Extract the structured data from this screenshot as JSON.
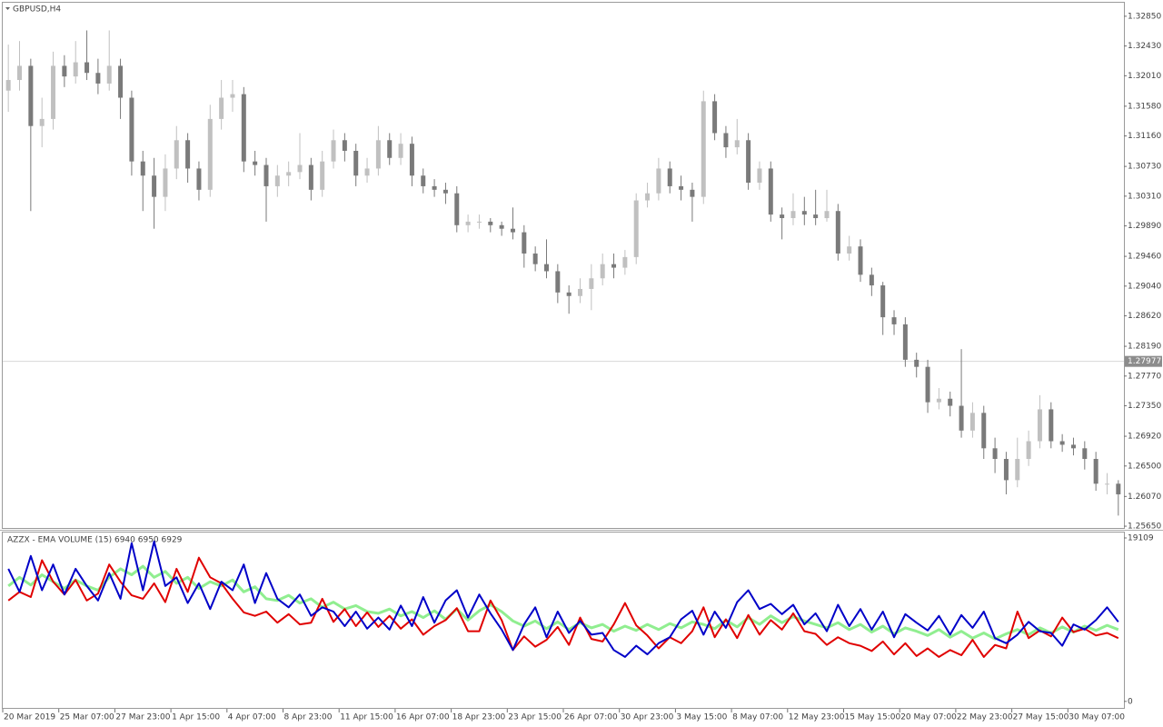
{
  "chart_data": [
    {
      "type": "candlestick",
      "title": "GBPUSD,H4",
      "up_color": "#c0c0c0",
      "down_color": "#7a7a7a",
      "line_color": "#d8d8d8",
      "categories": [
        "20 Mar 2019",
        null,
        null,
        null,
        null,
        "25 Mar 07:00",
        null,
        null,
        null,
        null,
        "27 Mar 23:00",
        null,
        null,
        null,
        null,
        "1 Apr 15:00",
        null,
        null,
        null,
        null,
        "4 Apr 07:00",
        null,
        null,
        null,
        null,
        "8 Apr 23:00",
        null,
        null,
        null,
        null,
        "11 Apr 15:00",
        null,
        null,
        null,
        null,
        "16 Apr 07:00",
        null,
        null,
        null,
        null,
        "18 Apr 23:00",
        null,
        null,
        null,
        null,
        "23 Apr 15:00",
        null,
        null,
        null,
        null,
        "26 Apr 07:00",
        null,
        null,
        null,
        null,
        "30 Apr 23:00",
        null,
        null,
        null,
        null,
        "3 May 15:00",
        null,
        null,
        null,
        null,
        "8 May 07:00",
        null,
        null,
        null,
        null,
        "12 May 23:00",
        null,
        null,
        null,
        null,
        "15 May 15:00",
        null,
        null,
        null,
        null,
        "20 May 07:00",
        null,
        null,
        null,
        null,
        "22 May 23:00",
        null,
        null,
        null,
        null,
        "27 May 15:00",
        null,
        null,
        null,
        null,
        "30 May 07:00",
        null,
        null,
        null,
        null
      ],
      "open": [
        1.318,
        1.3195,
        1.3215,
        1.313,
        1.314,
        1.3215,
        1.32,
        1.322,
        1.3205,
        1.319,
        1.3215,
        1.317,
        1.308,
        1.306,
        1.303,
        1.307,
        1.311,
        1.307,
        1.304,
        1.314,
        1.317,
        1.3175,
        1.308,
        1.3075,
        1.3045,
        1.306,
        1.3065,
        1.3075,
        1.304,
        1.308,
        1.311,
        1.3095,
        1.306,
        1.307,
        1.311,
        1.3085,
        1.3105,
        1.306,
        1.3045,
        1.304,
        1.3035,
        1.299,
        1.2995,
        1.2995,
        1.299,
        1.2985,
        1.298,
        1.295,
        1.2935,
        1.2925,
        1.2895,
        1.289,
        1.29,
        1.2915,
        1.2935,
        1.293,
        1.2945,
        1.3025,
        1.3035,
        1.307,
        1.3045,
        1.304,
        1.303,
        1.3165,
        1.312,
        1.31,
        1.311,
        1.305,
        1.307,
        1.3005,
        1.3,
        1.301,
        1.3005,
        1.3,
        1.301,
        1.295,
        1.296,
        1.292,
        1.2905,
        1.286,
        1.285,
        1.28,
        1.279,
        1.274,
        1.2745,
        1.2735,
        1.27,
        1.2725,
        1.2675,
        1.266,
        1.263,
        1.266,
        1.2685,
        1.273,
        1.2685,
        1.268,
        1.2675,
        1.266,
        1.2625,
        1.2625
      ],
      "high": [
        1.3245,
        1.325,
        1.3225,
        1.317,
        1.3235,
        1.323,
        1.325,
        1.3265,
        1.3225,
        1.3265,
        1.3225,
        1.318,
        1.3095,
        1.3085,
        1.309,
        1.313,
        1.312,
        1.308,
        1.316,
        1.3195,
        1.3195,
        1.3185,
        1.3095,
        1.3085,
        1.3075,
        1.308,
        1.312,
        1.3085,
        1.3095,
        1.3125,
        1.312,
        1.3105,
        1.3085,
        1.313,
        1.312,
        1.312,
        1.3115,
        1.307,
        1.3055,
        1.305,
        1.3045,
        1.3005,
        1.3005,
        1.3,
        1.2995,
        1.3015,
        1.299,
        1.296,
        1.297,
        1.2935,
        1.2905,
        1.2915,
        1.2935,
        1.295,
        1.295,
        1.2955,
        1.3035,
        1.305,
        1.3085,
        1.308,
        1.306,
        1.305,
        1.318,
        1.3175,
        1.313,
        1.314,
        1.312,
        1.308,
        1.308,
        1.3015,
        1.3035,
        1.303,
        1.304,
        1.304,
        1.302,
        1.2975,
        1.297,
        1.293,
        1.291,
        1.287,
        1.286,
        1.281,
        1.28,
        1.276,
        1.2755,
        1.2815,
        1.274,
        1.2735,
        1.269,
        1.267,
        1.269,
        1.27,
        1.275,
        1.274,
        1.2695,
        1.269,
        1.2685,
        1.267,
        1.264,
        1.263
      ],
      "low": [
        1.315,
        1.318,
        1.301,
        1.31,
        1.3125,
        1.3185,
        1.319,
        1.3195,
        1.3175,
        1.318,
        1.314,
        1.306,
        1.301,
        1.2985,
        1.301,
        1.3055,
        1.305,
        1.3025,
        1.303,
        1.3125,
        1.315,
        1.3065,
        1.306,
        1.2995,
        1.303,
        1.3045,
        1.3055,
        1.3025,
        1.303,
        1.307,
        1.308,
        1.3045,
        1.305,
        1.306,
        1.3075,
        1.3075,
        1.3045,
        1.3035,
        1.303,
        1.302,
        1.298,
        1.298,
        1.2985,
        1.298,
        1.2975,
        1.297,
        1.293,
        1.2925,
        1.2915,
        1.288,
        1.2865,
        1.288,
        1.287,
        1.2905,
        1.2915,
        1.292,
        1.2935,
        1.3015,
        1.3025,
        1.3035,
        1.3025,
        1.2995,
        1.302,
        1.311,
        1.3085,
        1.309,
        1.304,
        1.304,
        1.2995,
        1.297,
        1.299,
        1.299,
        1.299,
        1.2995,
        1.294,
        1.294,
        1.291,
        1.289,
        1.2835,
        1.2835,
        1.279,
        1.2775,
        1.2725,
        1.273,
        1.272,
        1.269,
        1.269,
        1.266,
        1.264,
        1.261,
        1.262,
        1.265,
        1.2675,
        1.2675,
        1.267,
        1.2665,
        1.2645,
        1.2615,
        1.261,
        1.258
      ],
      "close": [
        1.3195,
        1.3215,
        1.313,
        1.314,
        1.3215,
        1.32,
        1.322,
        1.3205,
        1.319,
        1.3215,
        1.317,
        1.308,
        1.306,
        1.303,
        1.307,
        1.311,
        1.307,
        1.304,
        1.314,
        1.317,
        1.3175,
        1.308,
        1.3075,
        1.3045,
        1.306,
        1.3065,
        1.3075,
        1.304,
        1.308,
        1.311,
        1.3095,
        1.306,
        1.307,
        1.311,
        1.3085,
        1.3105,
        1.306,
        1.3045,
        1.304,
        1.3035,
        1.299,
        1.2995,
        1.2995,
        1.299,
        1.2985,
        1.298,
        1.295,
        1.2935,
        1.2925,
        1.2895,
        1.289,
        1.29,
        1.2915,
        1.2935,
        1.293,
        1.2945,
        1.3025,
        1.3035,
        1.307,
        1.3045,
        1.304,
        1.303,
        1.3165,
        1.312,
        1.31,
        1.311,
        1.305,
        1.307,
        1.3005,
        1.3,
        1.301,
        1.3005,
        1.3,
        1.301,
        1.295,
        1.296,
        1.292,
        1.2905,
        1.286,
        1.285,
        1.28,
        1.279,
        1.274,
        1.2745,
        1.2735,
        1.27,
        1.2725,
        1.2675,
        1.266,
        1.263,
        1.266,
        1.2685,
        1.273,
        1.2685,
        1.268,
        1.2675,
        1.266,
        1.2625,
        1.2625,
        1.261
      ],
      "current_price": 1.27977,
      "ylim": [
        1.25612,
        1.33041
      ],
      "yticks": [
        {
          "value": 1.3285,
          "label": "1.32850"
        },
        {
          "value": 1.3243,
          "label": "1.32430"
        },
        {
          "value": 1.3201,
          "label": "1.32010"
        },
        {
          "value": 1.3158,
          "label": "1.31580"
        },
        {
          "value": 1.3116,
          "label": "1.31160"
        },
        {
          "value": 1.3073,
          "label": "1.30730"
        },
        {
          "value": 1.3031,
          "label": "1.30310"
        },
        {
          "value": 1.2989,
          "label": "1.29890"
        },
        {
          "value": 1.2946,
          "label": "1.29460"
        },
        {
          "value": 1.2904,
          "label": "1.29040"
        },
        {
          "value": 1.2862,
          "label": "1.28620"
        },
        {
          "value": 1.2819,
          "label": "1.28190"
        },
        {
          "value": 1.2777,
          "label": "1.27770"
        },
        {
          "value": 1.2735,
          "label": "1.27350"
        },
        {
          "value": 1.2692,
          "label": "1.26920"
        },
        {
          "value": 1.265,
          "label": "1.26500"
        },
        {
          "value": 1.2607,
          "label": "1.26070"
        },
        {
          "value": 1.2565,
          "label": "1.25650"
        }
      ]
    },
    {
      "type": "line",
      "title": "AZZX - EMA VOLUME (15) 6940 6950 6929",
      "ylim": [
        -870,
        19850
      ],
      "yticks": [
        0,
        19109
      ],
      "series": [
        {
          "color": "#90ee90",
          "width": 3,
          "values": [
            13500,
            14500,
            13600,
            14800,
            14000,
            13200,
            14200,
            13500,
            13000,
            14500,
            15500,
            14800,
            15800,
            14500,
            15200,
            13800,
            14500,
            13200,
            14000,
            13500,
            14200,
            12800,
            13400,
            12000,
            11800,
            12400,
            11500,
            12000,
            11000,
            11600,
            10800,
            11200,
            10500,
            10300,
            10800,
            10000,
            10500,
            9800,
            10600,
            9600,
            10800,
            9500,
            10600,
            11300,
            10500,
            9400,
            8800,
            9400,
            8500,
            9300,
            8400,
            9200,
            8600,
            9000,
            8200,
            8800,
            8300,
            9000,
            8400,
            9100,
            8600,
            9300,
            9000,
            8500,
            9500,
            8700,
            9800,
            9000,
            10000,
            9200,
            9900,
            9400,
            9000,
            8600,
            9200,
            8400,
            9000,
            8100,
            8800,
            7900,
            8600,
            8200,
            7700,
            8400,
            7500,
            8200,
            7400,
            8000,
            7300,
            7900,
            8400,
            7800,
            8600,
            8000,
            8700,
            8100,
            8800,
            8300,
            8900,
            8400
          ]
        },
        {
          "color": "#e00000",
          "width": 2,
          "values": [
            11800,
            12800,
            12200,
            16500,
            14000,
            12500,
            14200,
            11800,
            12600,
            16000,
            14000,
            12400,
            12000,
            13800,
            11600,
            15500,
            12800,
            16800,
            14500,
            13800,
            12000,
            10400,
            10000,
            10500,
            9200,
            10200,
            9000,
            9200,
            12000,
            9300,
            10800,
            8800,
            10400,
            8700,
            10000,
            8500,
            9600,
            7800,
            8800,
            9500,
            10900,
            8200,
            8200,
            11800,
            9500,
            6000,
            7600,
            6400,
            7200,
            8700,
            6600,
            9800,
            7300,
            7000,
            9000,
            11500,
            8900,
            7700,
            6200,
            7500,
            6800,
            8200,
            11000,
            7500,
            9600,
            7400,
            10100,
            7800,
            9500,
            8400,
            10300,
            8200,
            7900,
            6600,
            7500,
            6800,
            6500,
            5900,
            7000,
            5500,
            6800,
            5300,
            6200,
            5200,
            6000,
            5400,
            7200,
            5200,
            6600,
            6200,
            10500,
            7400,
            8300,
            7600,
            9800,
            8100,
            8500,
            7700,
            8000,
            7400
          ]
        },
        {
          "color": "#0000c8",
          "width": 2,
          "values": [
            15500,
            12800,
            17000,
            13000,
            16000,
            12500,
            15500,
            13500,
            11800,
            15000,
            12000,
            18500,
            13000,
            18700,
            13500,
            14500,
            11500,
            13800,
            10800,
            14000,
            13000,
            16000,
            11500,
            15000,
            12000,
            11000,
            12500,
            10000,
            11000,
            10500,
            8800,
            10500,
            8500,
            9800,
            8400,
            11200,
            8800,
            12200,
            9200,
            11800,
            13000,
            9800,
            12500,
            10300,
            8400,
            6000,
            9000,
            11000,
            7500,
            10500,
            8000,
            9400,
            7800,
            8000,
            6000,
            5200,
            6500,
            5500,
            6800,
            7500,
            9600,
            10600,
            7800,
            10500,
            8600,
            11600,
            13000,
            10800,
            11400,
            10200,
            11300,
            9000,
            10300,
            8200,
            11300,
            8800,
            10800,
            8400,
            10500,
            7500,
            10200,
            9200,
            8300,
            10000,
            7800,
            10100,
            8600,
            10500,
            7400,
            6800,
            7800,
            9300,
            8200,
            8000,
            6500,
            9000,
            8400,
            9500,
            11000,
            9300
          ]
        }
      ]
    }
  ]
}
